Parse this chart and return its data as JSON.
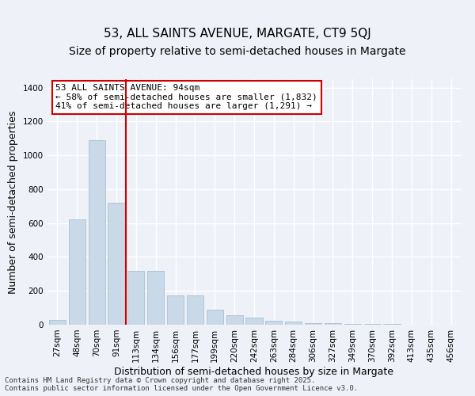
{
  "title": "53, ALL SAINTS AVENUE, MARGATE, CT9 5QJ",
  "subtitle": "Size of property relative to semi-detached houses in Margate",
  "xlabel": "Distribution of semi-detached houses by size in Margate",
  "ylabel": "Number of semi-detached properties",
  "categories": [
    "27sqm",
    "48sqm",
    "70sqm",
    "91sqm",
    "113sqm",
    "134sqm",
    "156sqm",
    "177sqm",
    "199sqm",
    "220sqm",
    "242sqm",
    "263sqm",
    "284sqm",
    "306sqm",
    "327sqm",
    "349sqm",
    "370sqm",
    "392sqm",
    "413sqm",
    "435sqm",
    "456sqm"
  ],
  "values": [
    30,
    620,
    1090,
    720,
    320,
    320,
    175,
    175,
    90,
    55,
    40,
    25,
    20,
    10,
    8,
    5,
    4,
    3,
    2,
    2,
    1
  ],
  "bar_color": "#c9d9e8",
  "bar_edge_color": "#a0b8cc",
  "vline_x": 3,
  "vline_color": "#cc0000",
  "annotation_title": "53 ALL SAINTS AVENUE: 94sqm",
  "annotation_line1": "← 58% of semi-detached houses are smaller (1,832)",
  "annotation_line2": "41% of semi-detached houses are larger (1,291) →",
  "annotation_box_color": "#cc0000",
  "ylim": [
    0,
    1450
  ],
  "yticks": [
    0,
    200,
    400,
    600,
    800,
    1000,
    1200,
    1400
  ],
  "background_color": "#eef2f8",
  "plot_background_color": "#eef2f8",
  "grid_color": "#ffffff",
  "footer_line1": "Contains HM Land Registry data © Crown copyright and database right 2025.",
  "footer_line2": "Contains public sector information licensed under the Open Government Licence v3.0.",
  "title_fontsize": 11,
  "subtitle_fontsize": 10,
  "label_fontsize": 9,
  "tick_fontsize": 7.5,
  "annotation_fontsize": 8
}
